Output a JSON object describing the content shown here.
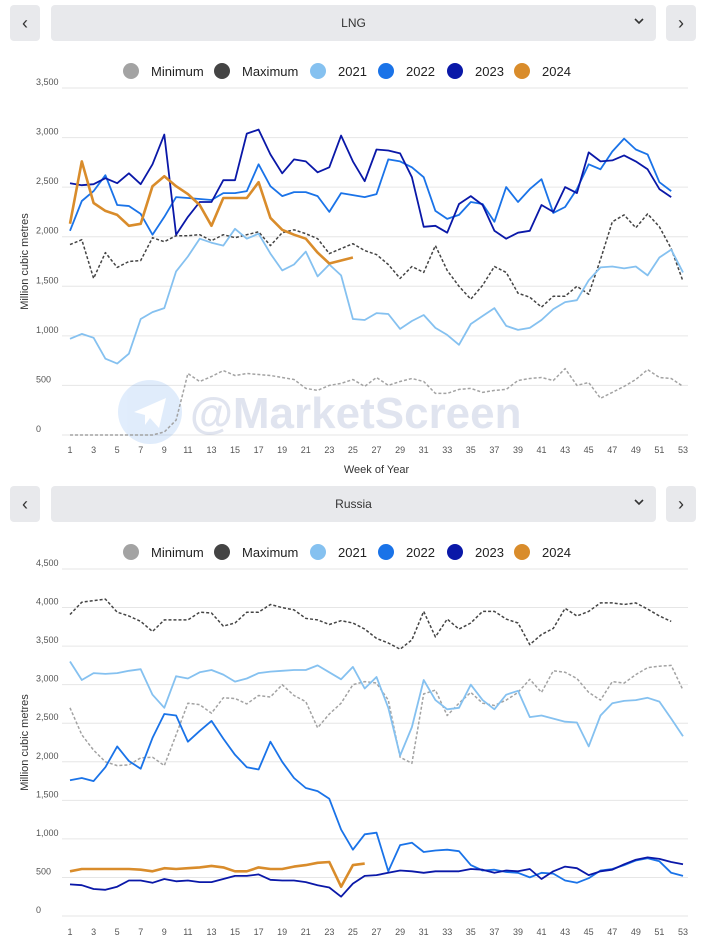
{
  "colors": {
    "Minimum": "#a3a3a3",
    "Maximum": "#444444",
    "2021": "#85c1f0",
    "2022": "#1a73e8",
    "2023": "#0a18a8",
    "2024": "#d98c2b"
  },
  "watermark": "@MarketScreen",
  "charts": [
    {
      "selector_label": "LNG",
      "chart_data": {
        "type": "line",
        "ylabel": "Million cubic metres",
        "xlabel": "Week of Year",
        "ylim": [
          0,
          3500
        ],
        "yticks": [
          0,
          500,
          1000,
          1500,
          2000,
          2500,
          3000,
          3500
        ],
        "ytick_labels": [
          "0",
          "500",
          "1,000",
          "1,500",
          "2,000",
          "2,500",
          "3,000",
          "3,500"
        ],
        "xticks": [
          1,
          3,
          5,
          7,
          9,
          11,
          13,
          15,
          17,
          19,
          21,
          23,
          25,
          27,
          29,
          31,
          33,
          35,
          37,
          39,
          41,
          43,
          45,
          47,
          49,
          51,
          53
        ],
        "legend": [
          "Minimum",
          "Maximum",
          "2021",
          "2022",
          "2023",
          "2024"
        ],
        "series": [
          {
            "name": "Minimum",
            "dashed": true,
            "values": [
              0,
              0,
              0,
              0,
              0,
              0,
              0,
              0,
              30,
              150,
              620,
              540,
              590,
              650,
              600,
              620,
              610,
              600,
              580,
              560,
              470,
              450,
              500,
              520,
              560,
              490,
              580,
              500,
              540,
              570,
              540,
              420,
              420,
              460,
              470,
              430,
              450,
              460,
              550,
              570,
              580,
              550,
              670,
              500,
              530,
              370,
              430,
              490,
              560,
              660,
              580,
              570,
              490
            ]
          },
          {
            "name": "Maximum",
            "dashed": true,
            "values": [
              1920,
              1970,
              1580,
              1840,
              1690,
              1750,
              1760,
              1990,
              1950,
              2010,
              2010,
              2020,
              1960,
              2020,
              1990,
              2020,
              2050,
              1910,
              2040,
              2070,
              2030,
              1980,
              1830,
              1880,
              1930,
              1860,
              1820,
              1720,
              1580,
              1700,
              1640,
              1910,
              1660,
              1500,
              1370,
              1510,
              1700,
              1640,
              1430,
              1390,
              1290,
              1400,
              1400,
              1500,
              1420,
              1770,
              2150,
              2220,
              2090,
              2230,
              2100,
              1880,
              1550
            ]
          },
          {
            "name": "2021",
            "dashed": false,
            "values": [
              970,
              1020,
              980,
              770,
              720,
              820,
              1170,
              1240,
              1280,
              1650,
              1800,
              1980,
              1940,
              1910,
              2080,
              1980,
              2030,
              1830,
              1660,
              1720,
              1850,
              1600,
              1720,
              1610,
              1170,
              1160,
              1230,
              1220,
              1070,
              1150,
              1210,
              1080,
              1010,
              910,
              1120,
              1200,
              1280,
              1100,
              1060,
              1080,
              1160,
              1270,
              1340,
              1360,
              1560,
              1690,
              1700,
              1680,
              1700,
              1610,
              1790,
              1870,
              1640
            ]
          },
          {
            "name": "2022",
            "dashed": false,
            "values": [
              2060,
              2360,
              2460,
              2620,
              2320,
              2310,
              2230,
              2020,
              2200,
              2400,
              2390,
              2380,
              2370,
              2440,
              2440,
              2460,
              2730,
              2510,
              2410,
              2450,
              2450,
              2410,
              2250,
              2440,
              2420,
              2400,
              2430,
              2780,
              2760,
              2700,
              2600,
              2260,
              2180,
              2220,
              2350,
              2330,
              2150,
              2500,
              2350,
              2480,
              2580,
              2240,
              2300,
              2480,
              2730,
              2680,
              2860,
              2990,
              2880,
              2830,
              2550,
              2460,
              null
            ]
          },
          {
            "name": "2023",
            "dashed": false,
            "values": [
              2540,
              2520,
              2530,
              2590,
              2540,
              2640,
              2530,
              2730,
              3030,
              2020,
              2200,
              2350,
              2350,
              2570,
              2570,
              3040,
              3080,
              2830,
              2640,
              2780,
              2760,
              2650,
              2700,
              3020,
              2760,
              2560,
              2880,
              2870,
              2840,
              2600,
              2100,
              2110,
              2040,
              2330,
              2410,
              2320,
              2060,
              1980,
              2040,
              2060,
              2320,
              2250,
              2500,
              2440,
              2850,
              2760,
              2770,
              2820,
              2760,
              2680,
              2480,
              2400,
              null
            ]
          },
          {
            "name": "2024",
            "dashed": false,
            "values": [
              2130,
              2760,
              2340,
              2260,
              2220,
              2110,
              2130,
              2510,
              2610,
              2510,
              2430,
              2320,
              2110,
              2390,
              2390,
              2390,
              2550,
              2190,
              2070,
              2020,
              1980,
              1840,
              1730,
              1760,
              1790,
              null,
              null,
              null,
              null,
              null,
              null,
              null,
              null,
              null,
              null,
              null,
              null,
              null,
              null,
              null,
              null,
              null,
              null,
              null,
              null,
              null,
              null,
              null,
              null,
              null,
              null,
              null,
              null
            ]
          }
        ]
      }
    },
    {
      "selector_label": "Russia",
      "chart_data": {
        "type": "line",
        "ylabel": "Million cubic metres",
        "xlabel": "",
        "ylim": [
          0,
          4500
        ],
        "yticks": [
          0,
          500,
          1000,
          1500,
          2000,
          2500,
          3000,
          3500,
          4000,
          4500
        ],
        "ytick_labels": [
          "0",
          "500",
          "1,000",
          "1,500",
          "2,000",
          "2,500",
          "3,000",
          "3,500",
          "4,000",
          "4,500"
        ],
        "xticks": [
          1,
          3,
          5,
          7,
          9,
          11,
          13,
          15,
          17,
          19,
          21,
          23,
          25,
          27,
          29,
          31,
          33,
          35,
          37,
          39,
          41,
          43,
          45,
          47,
          49,
          51,
          53
        ],
        "legend": [
          "Minimum",
          "Maximum",
          "2021",
          "2022",
          "2023",
          "2024"
        ],
        "series": [
          {
            "name": "Minimum",
            "dashed": true,
            "values": [
              2700,
              2350,
              2150,
              2000,
              1950,
              1960,
              2050,
              2060,
              1950,
              2350,
              2760,
              2740,
              2630,
              2830,
              2820,
              2750,
              2860,
              2840,
              3000,
              2860,
              2780,
              2440,
              2620,
              2760,
              3000,
              3040,
              3020,
              2800,
              2060,
              1980,
              2880,
              2930,
              2600,
              2760,
              2900,
              2760,
              2730,
              2800,
              2900,
              3070,
              2900,
              3180,
              3160,
              3080,
              2900,
              2800,
              3040,
              3020,
              3130,
              3220,
              3240,
              3250,
              2930
            ]
          },
          {
            "name": "Maximum",
            "dashed": true,
            "values": [
              3910,
              4070,
              4090,
              4110,
              3940,
              3890,
              3820,
              3690,
              3840,
              3840,
              3840,
              3940,
              3930,
              3760,
              3800,
              3940,
              3940,
              4040,
              4000,
              3970,
              3860,
              3840,
              3780,
              3830,
              3800,
              3720,
              3600,
              3540,
              3460,
              3580,
              3950,
              3620,
              3850,
              3720,
              3800,
              3950,
              3950,
              3850,
              3800,
              3520,
              3650,
              3730,
              3990,
              3890,
              3950,
              4060,
              4060,
              4040,
              4060,
              3980,
              3890,
              3820,
              null
            ]
          },
          {
            "name": "2021",
            "dashed": false,
            "values": [
              3300,
              3060,
              3150,
              3140,
              3150,
              3180,
              3200,
              2870,
              2700,
              3110,
              3080,
              3160,
              3190,
              3130,
              3040,
              3080,
              3150,
              3170,
              3180,
              3190,
              3190,
              3250,
              3160,
              3070,
              3230,
              2950,
              3100,
              2700,
              2080,
              2450,
              3060,
              2800,
              2680,
              2700,
              3000,
              2800,
              2680,
              2870,
              2920,
              2580,
              2600,
              2560,
              2520,
              2510,
              2200,
              2600,
              2760,
              2790,
              2800,
              2830,
              2780,
              2560,
              2330
            ]
          },
          {
            "name": "2022",
            "dashed": false,
            "values": [
              1760,
              1790,
              1750,
              1930,
              2200,
              2010,
              1910,
              2310,
              2620,
              2600,
              2260,
              2400,
              2530,
              2300,
              2090,
              1930,
              1900,
              2260,
              2000,
              1790,
              1660,
              1620,
              1520,
              1120,
              860,
              1060,
              1080,
              580,
              920,
              950,
              830,
              850,
              860,
              840,
              660,
              590,
              600,
              570,
              560,
              500,
              560,
              550,
              460,
              430,
              490,
              590,
              610,
              660,
              720,
              750,
              710,
              560,
              520
            ]
          },
          {
            "name": "2023",
            "dashed": false,
            "values": [
              410,
              400,
              350,
              340,
              380,
              460,
              460,
              430,
              480,
              450,
              460,
              440,
              440,
              480,
              520,
              520,
              540,
              470,
              460,
              460,
              440,
              400,
              370,
              250,
              420,
              520,
              530,
              560,
              590,
              580,
              560,
              580,
              580,
              580,
              610,
              600,
              560,
              590,
              580,
              610,
              480,
              580,
              640,
              620,
              530,
              580,
              600,
              670,
              730,
              760,
              740,
              700,
              670
            ]
          },
          {
            "name": "2024",
            "dashed": false,
            "values": [
              580,
              610,
              610,
              610,
              610,
              610,
              600,
              580,
              620,
              610,
              620,
              630,
              650,
              630,
              580,
              580,
              630,
              610,
              610,
              640,
              660,
              690,
              700,
              380,
              660,
              680,
              null,
              null,
              null,
              null,
              null,
              null,
              null,
              null,
              null,
              null,
              null,
              null,
              null,
              null,
              null,
              null,
              null,
              null,
              null,
              null,
              null,
              null,
              null,
              null,
              null,
              null,
              null
            ]
          }
        ]
      }
    }
  ]
}
